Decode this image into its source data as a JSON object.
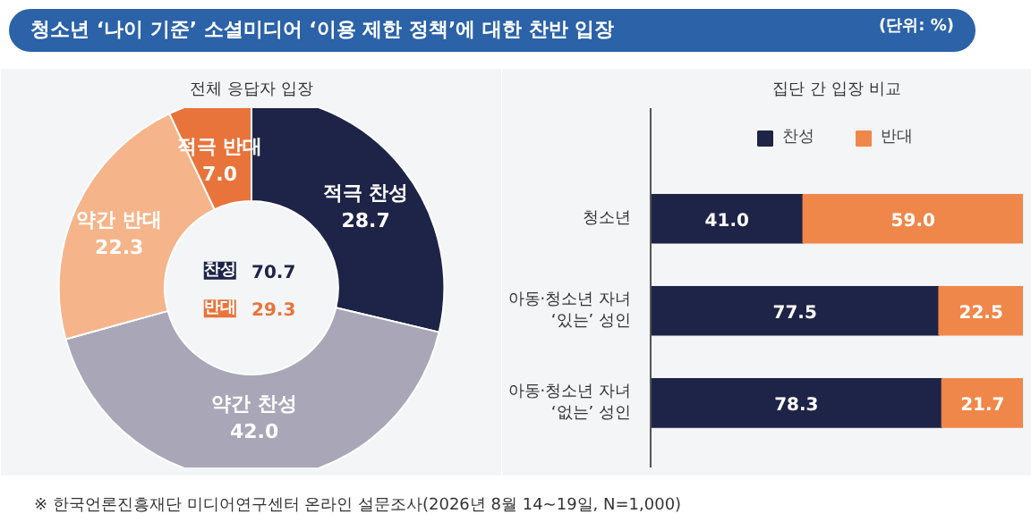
{
  "chart_data": [
    {
      "type": "donut",
      "title": "청소년 ‘나이 기준’ 소셜미디어 ‘이용 제한 정책’에 대한 찬반 입장",
      "subtitle": "전체 응답자 입장",
      "categories": [
        "적극 찬성",
        "약간 찬성",
        "약간 반대",
        "적극 반대"
      ],
      "values": [
        28.7,
        42.0,
        22.3,
        7.0
      ],
      "colors": [
        "#1e2447",
        "#a9a6b8",
        "#f6b48b",
        "#e8743b"
      ],
      "value_labels": [
        "28.7",
        "42.0",
        "22.3",
        "7.0"
      ],
      "annotations": [
        "(단위: %)",
        "찬성",
        "70.7",
        "반대",
        "29.3",
        "※ 한국언론진흥재단 미디어연구센터 온라인 설문조사(2026년 8월 14~19일, N=1,000)"
      ]
    },
    {
      "type": "bar",
      "orientation": "horizontal",
      "stacked": true,
      "subtitle": "집단 간 입장 비교",
      "categories": [
        "청소년",
        "아동·청소년 자녀\n‘있는’ 성인",
        "아동·청소년 자녀\n‘없는’ 성인"
      ],
      "series": [
        {
          "name": "찬성",
          "color": "#1e2447",
          "values": [
            41.0,
            77.5,
            78.3
          ],
          "value_labels": [
            "41.0",
            "77.5",
            "78.3"
          ]
        },
        {
          "name": "반대",
          "color": "#f0874a",
          "values": [
            59.0,
            22.5,
            21.7
          ],
          "value_labels": [
            "59.0",
            "22.5",
            "21.7"
          ]
        }
      ],
      "xlim": [
        0,
        100
      ],
      "legend": "top",
      "tick_labels": "y"
    }
  ]
}
